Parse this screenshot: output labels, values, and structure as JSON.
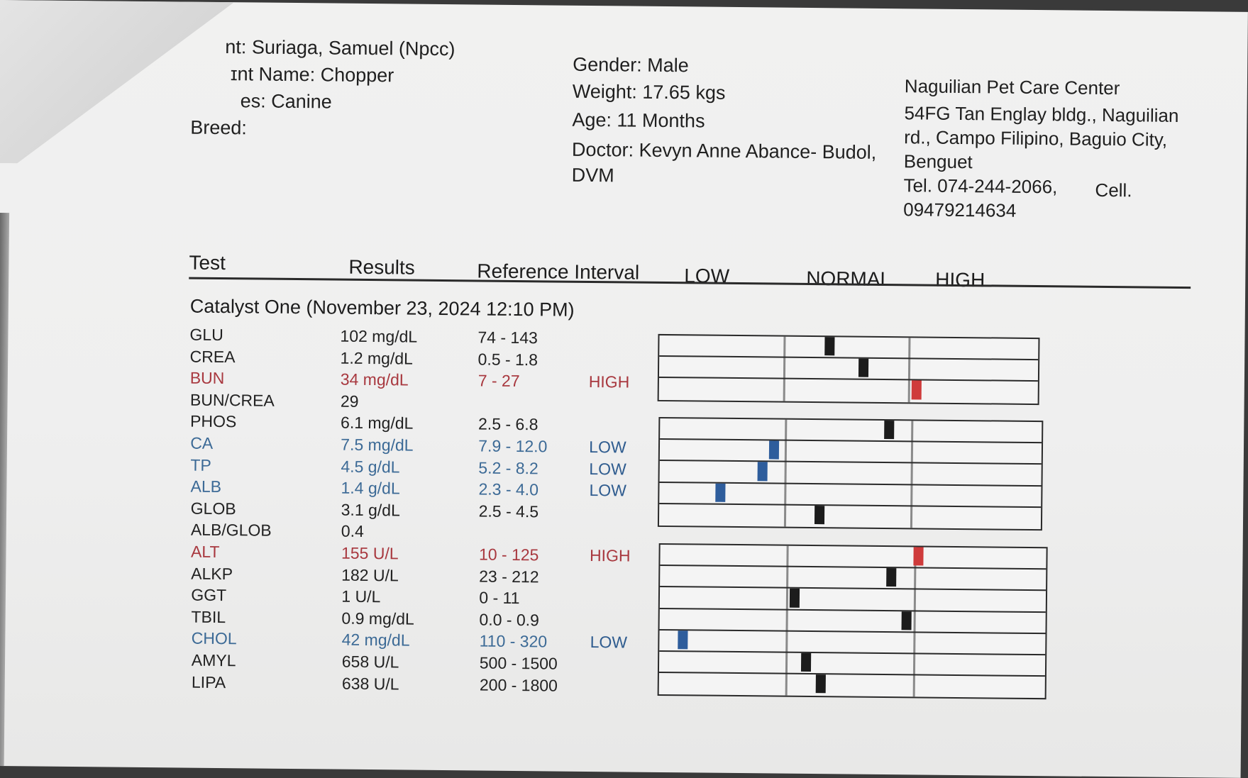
{
  "patient": {
    "client_line": "nt: Suriaga, Samuel (Npcc)",
    "patient_line": "ɪnt Name: Chopper",
    "species_line": "es: Canine",
    "breed_line": "Breed:"
  },
  "details": {
    "gender": "Gender: Male",
    "weight": "Weight: 17.65 kgs",
    "age": "Age: 11 Months",
    "doctor_line1": "Doctor: Kevyn Anne Abance- Budol,",
    "doctor_line2": "DVM"
  },
  "clinic": {
    "name": "Naguilian Pet Care Center",
    "address_line1": "54FG Tan Englay bldg., Naguilian",
    "address_line2": "rd., Campo Filipino, Baguio City,",
    "address_line3": "Benguet",
    "tel": "Tel. 074-244-2066,",
    "cell_label": "Cell.",
    "cell_number": "09479214634"
  },
  "table_header": {
    "test": "Test",
    "results": "Results",
    "reference": "Reference Interval",
    "low": "LOW",
    "normal": "NORMAL",
    "high": "HIGH"
  },
  "section_title": "Catalyst One (November 23, 2024 12:10 PM)",
  "colors": {
    "normal_marker": "#1c1c1c",
    "low_marker": "#2e5d9c",
    "high_marker": "#cf3b3b",
    "high_text": "#a8383f",
    "low_text": "#2f5c8f"
  },
  "tests": [
    {
      "name": "GLU",
      "result": "102 mg/dL",
      "ref": "74 - 143",
      "flag": "",
      "status": "normal",
      "level": 0.45
    },
    {
      "name": "CREA",
      "result": "1.2 mg/dL",
      "ref": "0.5 - 1.8",
      "flag": "",
      "status": "normal",
      "level": 0.54
    },
    {
      "name": "BUN",
      "result": "34 mg/dL",
      "ref": "7 - 27",
      "flag": "HIGH",
      "status": "high",
      "level": 0.68
    },
    {
      "name": "BUN/CREA",
      "result": "29",
      "ref": "",
      "flag": "",
      "status": "normal",
      "level": null
    },
    {
      "name": "PHOS",
      "result": "6.1 mg/dL",
      "ref": "2.5 - 6.8",
      "flag": "",
      "status": "normal",
      "level": 0.6
    },
    {
      "name": "CA",
      "result": "7.5 mg/dL",
      "ref": "7.9 - 12.0",
      "flag": "LOW",
      "status": "low",
      "level": 0.3
    },
    {
      "name": "TP",
      "result": "4.5 g/dL",
      "ref": "5.2 - 8.2",
      "flag": "LOW",
      "status": "low",
      "level": 0.27
    },
    {
      "name": "ALB",
      "result": "1.4 g/dL",
      "ref": "2.3 - 4.0",
      "flag": "LOW",
      "status": "low",
      "level": 0.16
    },
    {
      "name": "GLOB",
      "result": "3.1 g/dL",
      "ref": "2.5 - 4.5",
      "flag": "",
      "status": "normal",
      "level": 0.42
    },
    {
      "name": "ALB/GLOB",
      "result": "0.4",
      "ref": "",
      "flag": "",
      "status": "normal",
      "level": null
    },
    {
      "name": "ALT",
      "result": "155 U/L",
      "ref": "10 - 125",
      "flag": "HIGH",
      "status": "high",
      "level": 0.67
    },
    {
      "name": "ALKP",
      "result": "182 U/L",
      "ref": "23 - 212",
      "flag": "",
      "status": "normal",
      "level": 0.6
    },
    {
      "name": "GGT",
      "result": "1 U/L",
      "ref": "0 - 11",
      "flag": "",
      "status": "normal",
      "level": 0.35
    },
    {
      "name": "TBIL",
      "result": "0.9 mg/dL",
      "ref": "0.0 - 0.9",
      "flag": "",
      "status": "normal",
      "level": 0.64
    },
    {
      "name": "CHOL",
      "result": "42 mg/dL",
      "ref": "110 - 320",
      "flag": "LOW",
      "status": "low",
      "level": 0.06
    },
    {
      "name": "AMYL",
      "result": "658 U/L",
      "ref": "500 - 1500",
      "flag": "",
      "status": "normal",
      "level": 0.38
    },
    {
      "name": "LIPA",
      "result": "638 U/L",
      "ref": "200 - 1800",
      "flag": "",
      "status": "normal",
      "level": 0.42
    }
  ]
}
